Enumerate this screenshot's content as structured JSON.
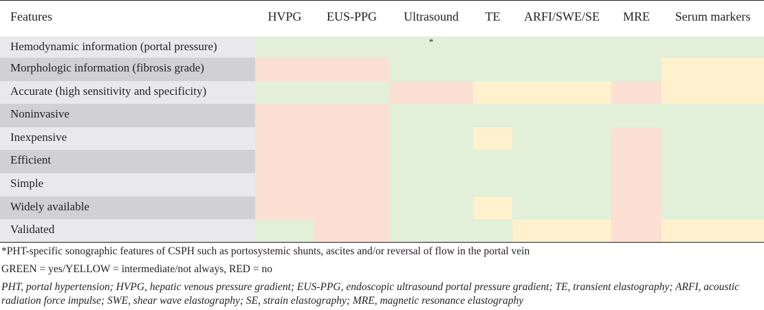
{
  "table": {
    "headers": [
      "Features",
      "HVPG",
      "EUS-PPG",
      "Ultrasound",
      "TE",
      "ARFI/SWE/SE",
      "MRE",
      "Serum markers"
    ],
    "rows": [
      {
        "label": "Hemodynamic information (portal pressure)",
        "cells": [
          {
            "color": "green",
            "mark": ""
          },
          {
            "color": "green",
            "mark": ""
          },
          {
            "color": "green",
            "mark": "*"
          },
          {
            "color": "green",
            "mark": ""
          },
          {
            "color": "green",
            "mark": ""
          },
          {
            "color": "green",
            "mark": ""
          },
          {
            "color": "green",
            "mark": ""
          }
        ]
      },
      {
        "label": "Morphologic information (fibrosis grade)",
        "cells": [
          {
            "color": "red",
            "mark": ""
          },
          {
            "color": "red",
            "mark": ""
          },
          {
            "color": "green",
            "mark": ""
          },
          {
            "color": "green",
            "mark": ""
          },
          {
            "color": "green",
            "mark": ""
          },
          {
            "color": "green",
            "mark": ""
          },
          {
            "color": "yellow",
            "mark": ""
          }
        ]
      },
      {
        "label": "Accurate (high sensitivity and specificity)",
        "cells": [
          {
            "color": "green",
            "mark": ""
          },
          {
            "color": "green",
            "mark": ""
          },
          {
            "color": "red",
            "mark": ""
          },
          {
            "color": "yellow",
            "mark": ""
          },
          {
            "color": "yellow",
            "mark": ""
          },
          {
            "color": "red",
            "mark": ""
          },
          {
            "color": "yellow",
            "mark": ""
          }
        ]
      },
      {
        "label": "Noninvasive",
        "cells": [
          {
            "color": "red",
            "mark": ""
          },
          {
            "color": "red",
            "mark": ""
          },
          {
            "color": "green",
            "mark": ""
          },
          {
            "color": "green",
            "mark": ""
          },
          {
            "color": "green",
            "mark": ""
          },
          {
            "color": "green",
            "mark": ""
          },
          {
            "color": "green",
            "mark": ""
          }
        ]
      },
      {
        "label": "Inexpensive",
        "cells": [
          {
            "color": "red",
            "mark": ""
          },
          {
            "color": "red",
            "mark": ""
          },
          {
            "color": "green",
            "mark": ""
          },
          {
            "color": "yellow",
            "mark": ""
          },
          {
            "color": "green",
            "mark": ""
          },
          {
            "color": "red",
            "mark": ""
          },
          {
            "color": "green",
            "mark": ""
          }
        ]
      },
      {
        "label": "Efficient",
        "cells": [
          {
            "color": "red",
            "mark": ""
          },
          {
            "color": "red",
            "mark": ""
          },
          {
            "color": "green",
            "mark": ""
          },
          {
            "color": "green",
            "mark": ""
          },
          {
            "color": "green",
            "mark": ""
          },
          {
            "color": "red",
            "mark": ""
          },
          {
            "color": "green",
            "mark": ""
          }
        ]
      },
      {
        "label": "Simple",
        "cells": [
          {
            "color": "red",
            "mark": ""
          },
          {
            "color": "red",
            "mark": ""
          },
          {
            "color": "green",
            "mark": ""
          },
          {
            "color": "green",
            "mark": ""
          },
          {
            "color": "green",
            "mark": ""
          },
          {
            "color": "red",
            "mark": ""
          },
          {
            "color": "green",
            "mark": ""
          }
        ]
      },
      {
        "label": "Widely available",
        "cells": [
          {
            "color": "red",
            "mark": ""
          },
          {
            "color": "red",
            "mark": ""
          },
          {
            "color": "green",
            "mark": ""
          },
          {
            "color": "yellow",
            "mark": ""
          },
          {
            "color": "green",
            "mark": ""
          },
          {
            "color": "red",
            "mark": ""
          },
          {
            "color": "green",
            "mark": ""
          }
        ]
      },
      {
        "label": "Validated",
        "cells": [
          {
            "color": "green",
            "mark": ""
          },
          {
            "color": "red",
            "mark": ""
          },
          {
            "color": "green",
            "mark": ""
          },
          {
            "color": "green",
            "mark": ""
          },
          {
            "color": "yellow",
            "mark": ""
          },
          {
            "color": "red",
            "mark": ""
          },
          {
            "color": "yellow",
            "mark": ""
          }
        ]
      }
    ]
  },
  "colors": {
    "green": "#e2efd9",
    "yellow": "#fff1cd",
    "red": "#fce0d4"
  },
  "footnotes": {
    "asterisk": "*PHT-specific sonographic features of CSPH such as portosystemic shunts, ascites and/or reversal of flow in the portal vein",
    "legend": "GREEN = yes/YELLOW = intermediate/not always, RED = no",
    "abbreviations": "PHT, portal hypertension; HVPG, hepatic venous pressure gradient; EUS-PPG, endoscopic ultrasound portal pressure gradient; TE, transient elastography; ARFI, acoustic radiation force impulse; SWE, shear wave elastography; SE, strain elastography; MRE, magnetic resonance elastography"
  }
}
